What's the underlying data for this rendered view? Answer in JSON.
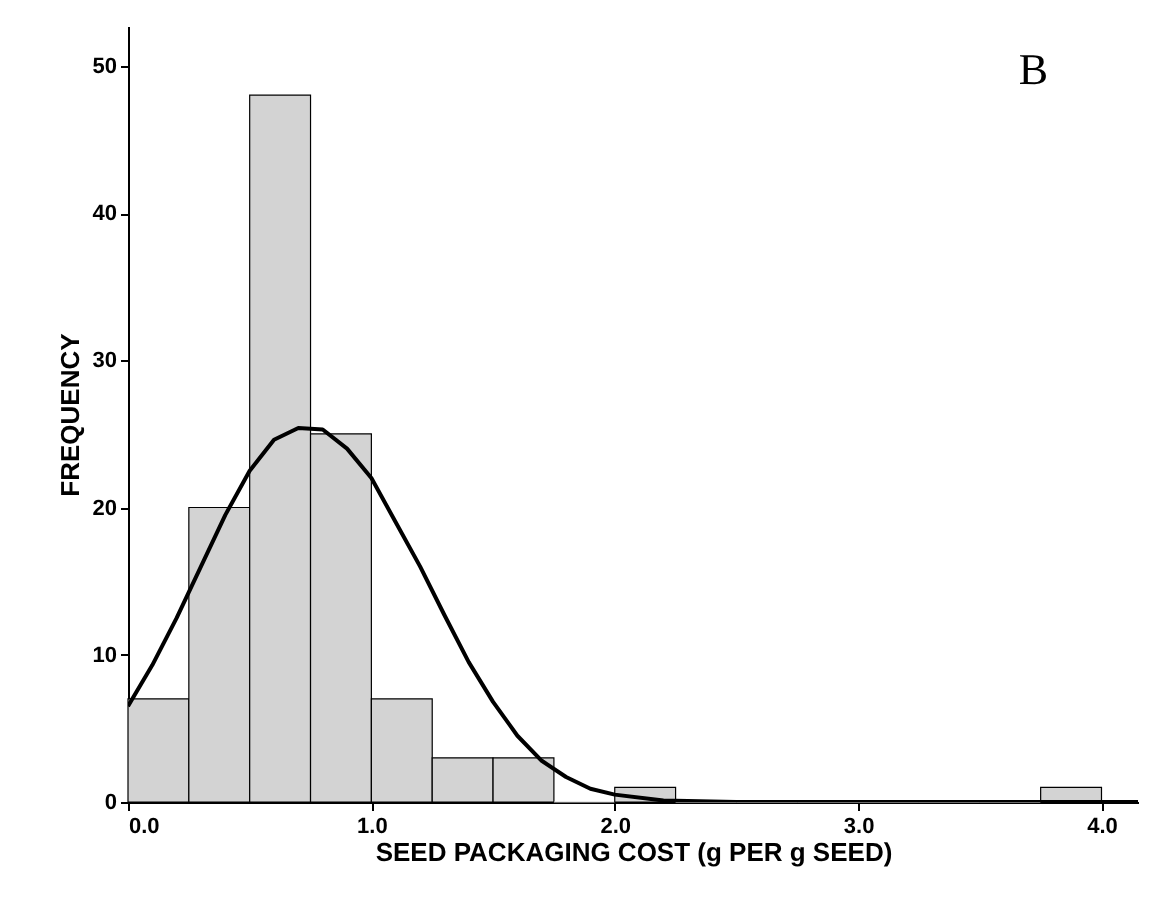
{
  "chart_data": {
    "type": "histogram",
    "xlabel": "SEED PACKAGING COST (g PER g SEED)",
    "ylabel": "FREQUENCY",
    "annotations": [
      "B"
    ],
    "bins": [
      0,
      0.25,
      0.5,
      0.75,
      1,
      1.25,
      1.5,
      1.75,
      2,
      2.25,
      2.5,
      2.75,
      3,
      3.25,
      3.5,
      3.75,
      4
    ],
    "series": [
      {
        "color": "#d3d3d3",
        "values": [
          7,
          20,
          48,
          25,
          7,
          3,
          3,
          0,
          1,
          0,
          0,
          0,
          0,
          0,
          0,
          1
        ]
      },
      {
        "type": "line",
        "color": "#000000",
        "x": [
          0,
          0.1,
          0.2,
          0.3,
          0.4,
          0.5,
          0.6,
          0.7,
          0.8,
          0.9,
          1.0,
          1.1,
          1.2,
          1.3,
          1.4,
          1.5,
          1.6,
          1.7,
          1.8,
          1.9,
          2.0,
          2.2,
          2.5,
          3.0,
          3.5,
          4.15
        ],
        "values": [
          6.5,
          9.3,
          12.5,
          16,
          19.5,
          22.5,
          24.6,
          25.4,
          25.3,
          24,
          22,
          19,
          16,
          12.7,
          9.5,
          6.8,
          4.5,
          2.8,
          1.7,
          0.9,
          0.5,
          0.1,
          0,
          0,
          0,
          0
        ]
      }
    ],
    "xlim": [
      0,
      4.15
    ],
    "xticks": [
      {
        "value": 0,
        "label": "0.0"
      },
      {
        "value": 1,
        "label": "1.0"
      },
      {
        "value": 2,
        "label": "2.0"
      },
      {
        "value": 3,
        "label": "3.0"
      },
      {
        "value": 4,
        "label": "4.0"
      }
    ],
    "ylim": [
      0,
      52.7
    ],
    "yticks": [
      0,
      10,
      20,
      30,
      40,
      50
    ],
    "grid": false
  }
}
